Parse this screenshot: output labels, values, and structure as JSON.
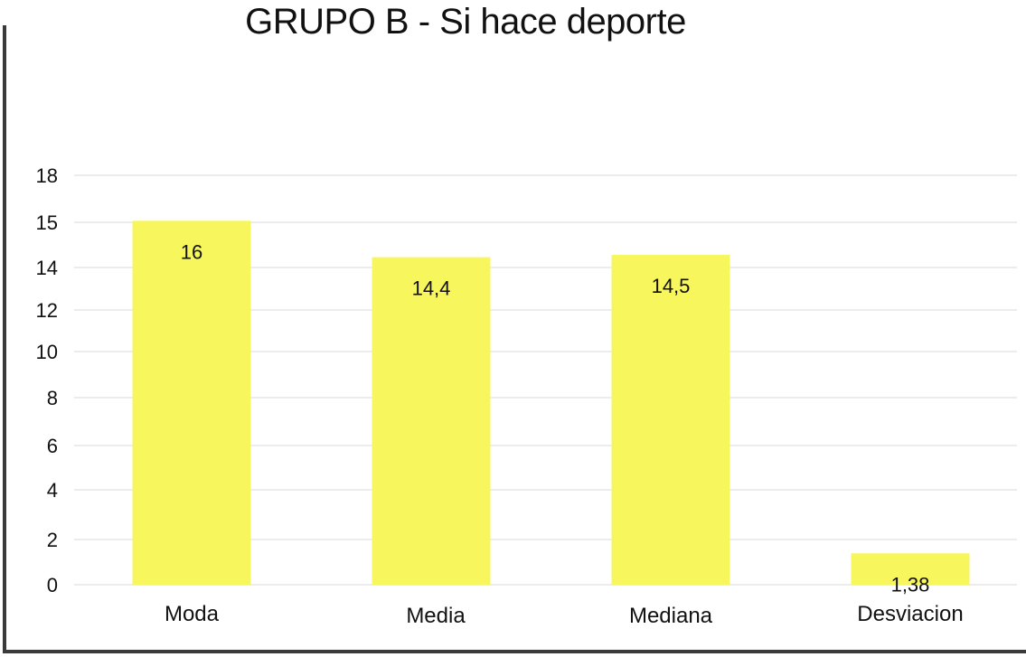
{
  "chart_data": {
    "type": "bar",
    "title": "GRUPO B - Si hace deporte",
    "categories": [
      "Moda",
      "Media",
      "Mediana",
      "Desviacion"
    ],
    "values": [
      16,
      14.4,
      14.5,
      1.38
    ],
    "data_labels": [
      "16",
      "14,4",
      "14,5",
      "1,38"
    ],
    "y_tick_labels": [
      "0",
      "2",
      "4",
      "6",
      "8",
      "10",
      "12",
      "14",
      "15",
      "18"
    ],
    "ylim": [
      0,
      18
    ],
    "xlabel": "",
    "ylabel": "",
    "grid": true,
    "legend": "none",
    "bar_color": "#f7f65c",
    "gridline_color": "#d9d9d9",
    "text_color": "#111111"
  }
}
